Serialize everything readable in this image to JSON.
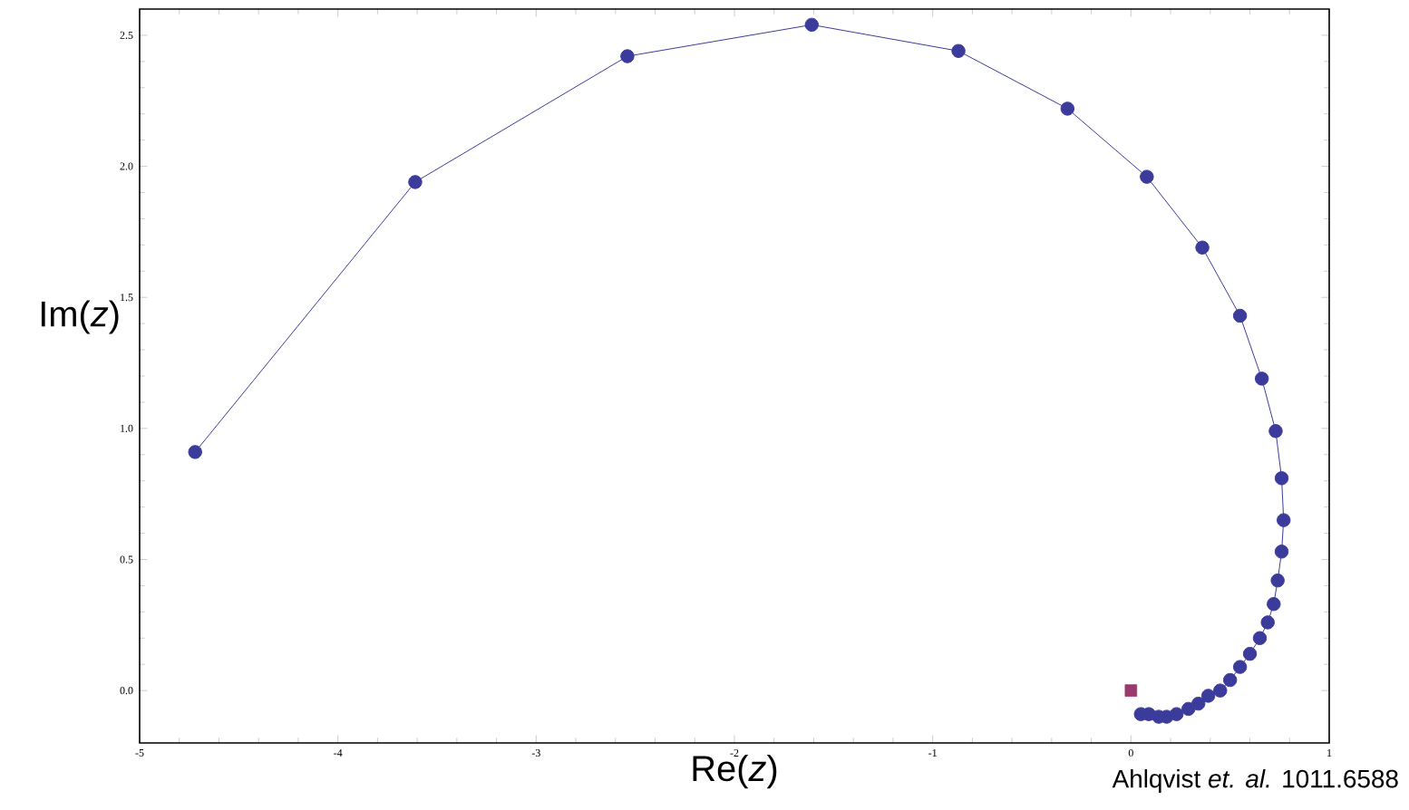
{
  "chart_data": {
    "type": "line",
    "xlabel": "Re(*z*)",
    "ylabel": "Im(*z*)",
    "annotations": [
      "Ahlqvist *et. al.* 1011.6588"
    ],
    "xlim": [
      -5,
      1
    ],
    "ylim": [
      -0.2,
      2.6
    ],
    "xticks": [
      -5,
      -4,
      -3,
      -2,
      -1,
      0,
      1
    ],
    "yticks": [
      {
        "value": 0,
        "label": "0.0"
      },
      {
        "value": 0.5,
        "label": "0.5"
      },
      {
        "value": 1,
        "label": "1.0"
      },
      {
        "value": 1.5,
        "label": "1.5"
      },
      {
        "value": 2,
        "label": "2.0"
      },
      {
        "value": 2.5,
        "label": "2.5"
      }
    ],
    "grid": false,
    "series": [
      {
        "marker": "circle",
        "color": "#3b3b9c",
        "x": [
          -4.72,
          -3.61,
          -2.54,
          -1.61,
          -0.87,
          -0.32,
          0.08,
          0.36,
          0.55,
          0.66,
          0.73,
          0.76,
          0.77,
          0.76,
          0.74,
          0.72,
          0.69,
          0.65,
          0.6,
          0.55,
          0.5,
          0.45,
          0.39,
          0.34,
          0.29,
          0.23,
          0.18,
          0.14,
          0.09,
          0.05
        ],
        "values": [
          0.91,
          1.94,
          2.42,
          2.54,
          2.44,
          2.22,
          1.96,
          1.69,
          1.43,
          1.19,
          0.99,
          0.81,
          0.65,
          0.53,
          0.42,
          0.33,
          0.26,
          0.2,
          0.14,
          0.09,
          0.04,
          0.0,
          -0.02,
          -0.05,
          -0.07,
          -0.09,
          -0.1,
          -0.1,
          -0.09,
          -0.09
        ]
      },
      {
        "type": "scatter",
        "marker": "square",
        "color": "#9c3a6e",
        "x": [
          0
        ],
        "values": [
          0
        ]
      }
    ]
  }
}
